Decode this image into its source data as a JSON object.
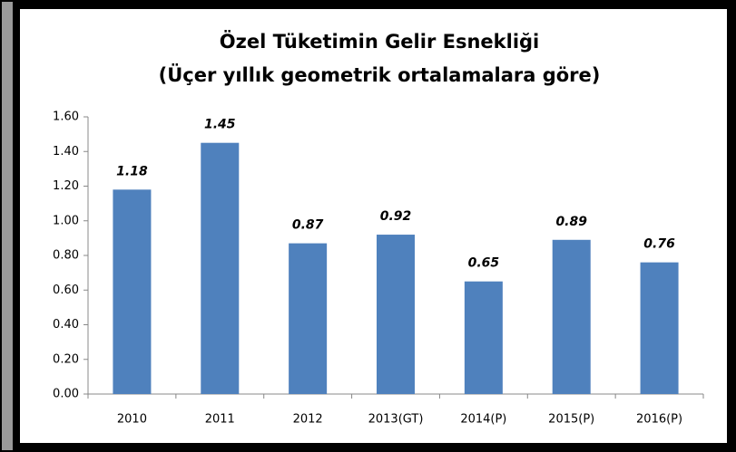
{
  "chart_data": {
    "type": "bar",
    "title": "Özel Tüketimin Gelir Esnekliği",
    "subtitle": "(Üçer yıllık geometrik ortalamalara göre)",
    "categories": [
      "2010",
      "2011",
      "2012",
      "2013(GT)",
      "2014(P)",
      "2015(P)",
      "2016(P)"
    ],
    "values": [
      1.18,
      1.45,
      0.87,
      0.92,
      0.65,
      0.89,
      0.76
    ],
    "color": "#4f81bd",
    "ylim": [
      0,
      1.6
    ],
    "yticks": [
      {
        "value": 0,
        "label": "0.00"
      },
      {
        "value": 0.2,
        "label": "0.20"
      },
      {
        "value": 0.4,
        "label": "0.40"
      },
      {
        "value": 0.6,
        "label": "0.60"
      },
      {
        "value": 0.8,
        "label": "0.80"
      },
      {
        "value": 1,
        "label": "1.00"
      },
      {
        "value": 1.2,
        "label": "1.20"
      },
      {
        "value": 1.4,
        "label": "1.40"
      },
      {
        "value": 1.6,
        "label": "1.60"
      }
    ],
    "grid": false
  }
}
